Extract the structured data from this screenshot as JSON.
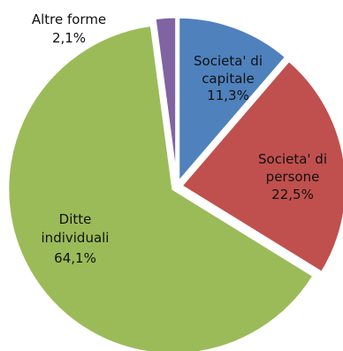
{
  "chart_data": {
    "type": "pie",
    "title": "",
    "slices": [
      {
        "label_lines": [
          "Societa' di",
          "capitale"
        ],
        "value_label": "11,3%",
        "value": 11.3,
        "color": "#4f81bd"
      },
      {
        "label_lines": [
          "Societa' di",
          "persone"
        ],
        "value_label": "22,5%",
        "value": 22.5,
        "color": "#c0504d"
      },
      {
        "label_lines": [
          "Ditte",
          "individuali"
        ],
        "value_label": "64,1%",
        "value": 64.1,
        "color": "#9bbb59"
      },
      {
        "label_lines": [
          "Altre forme"
        ],
        "value_label": "2,1%",
        "value": 2.1,
        "color": "#8064a2"
      }
    ],
    "start_angle_deg": 0,
    "direction": "clockwise",
    "exploded": true,
    "legend": "none"
  }
}
